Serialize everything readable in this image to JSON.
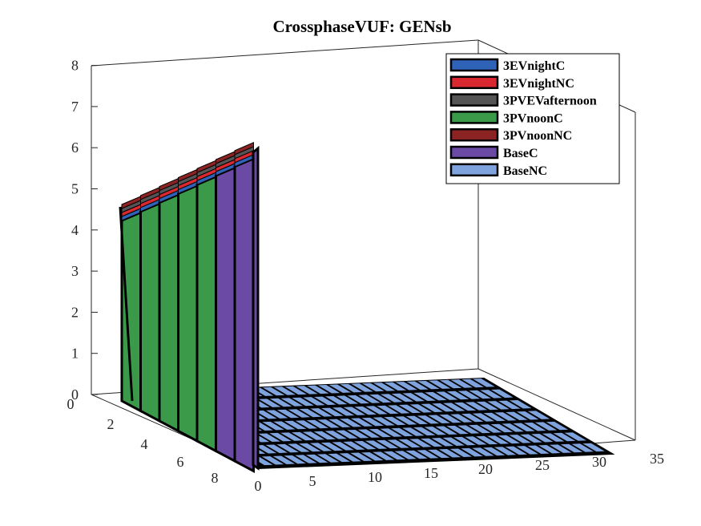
{
  "chart_data": {
    "type": "3d-bar",
    "title": "CrossphaseVUF: GENsb",
    "xlabel": "",
    "ylabel": "",
    "zlabel": "",
    "x_ticks": [
      "0",
      "5",
      "10",
      "15",
      "20",
      "25",
      "30",
      "35"
    ],
    "y_ticks": [
      "0",
      "2",
      "4",
      "6",
      "8"
    ],
    "z_ticks": [
      "0",
      "1",
      "2",
      "3",
      "4",
      "5",
      "6",
      "7",
      "8"
    ],
    "xlim": [
      0,
      35
    ],
    "ylim": [
      0,
      8
    ],
    "zlim": [
      0,
      8
    ],
    "legend_position": "top-right",
    "grid": false,
    "series": [
      {
        "name": "3EVnightC",
        "color": "#2f63b8"
      },
      {
        "name": "3EVnightNC",
        "color": "#d9282f"
      },
      {
        "name": "3PVEVafternoon",
        "color": "#555555"
      },
      {
        "name": "3PVnoonC",
        "color": "#3a9a4a"
      },
      {
        "name": "3PVnoonNC",
        "color": "#8b2323"
      },
      {
        "name": "BaseC",
        "color": "#6a4aa5"
      },
      {
        "name": "BaseNC",
        "color": "#7fa3dd"
      }
    ],
    "nonzero_rows": [
      1,
      2,
      3,
      4,
      5,
      6,
      7
    ],
    "nonzero_column": 0,
    "row_stack_values": [
      {
        "row": 1,
        "green_top": 4.2,
        "total": 4.55
      },
      {
        "row": 2,
        "green_top": 4.45,
        "total": 4.8
      },
      {
        "row": 3,
        "green_top": 4.7,
        "total": 5.05
      },
      {
        "row": 4,
        "green_top": 4.95,
        "total": 5.3
      },
      {
        "row": 5,
        "green_top": 5.2,
        "total": 5.55
      },
      {
        "row": 6,
        "purple_top": 5.45,
        "total": 5.8
      },
      {
        "row": 7,
        "purple_top": 5.65,
        "total": 6.0
      }
    ],
    "remaining_values": 0
  }
}
